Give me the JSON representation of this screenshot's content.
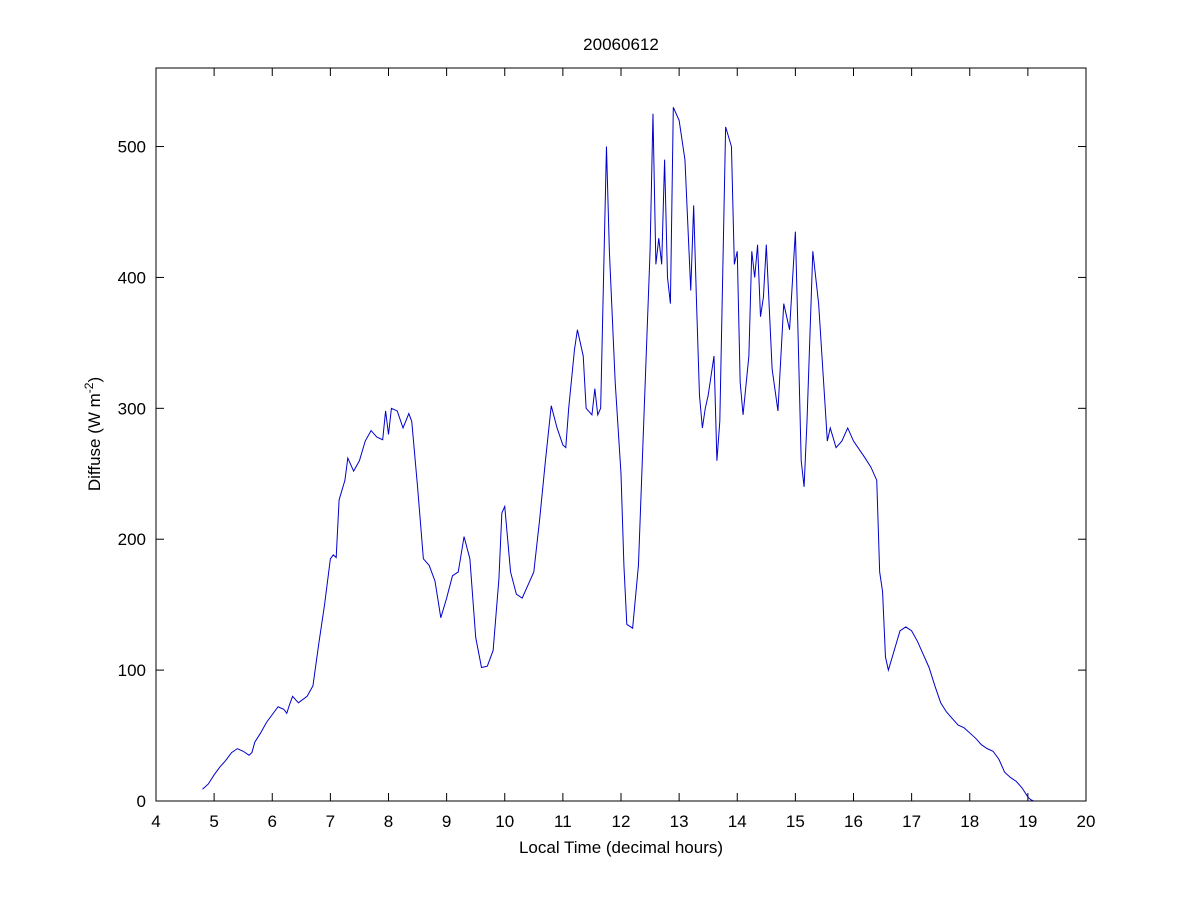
{
  "chart_data": {
    "type": "line",
    "title": "20060612",
    "xlabel": "Local Time (decimal hours)",
    "ylabel": [
      "Diffuse (W m",
      "-2",
      ")"
    ],
    "xlim": [
      4,
      20
    ],
    "ylim": [
      0,
      560
    ],
    "xticks": [
      4,
      5,
      6,
      7,
      8,
      9,
      10,
      11,
      12,
      13,
      14,
      15,
      16,
      17,
      18,
      19,
      20
    ],
    "yticks": [
      0,
      100,
      200,
      300,
      400,
      500
    ],
    "grid": false,
    "series": [
      {
        "color": "#0000cc",
        "x": [
          4.8,
          4.9,
          5.0,
          5.1,
          5.2,
          5.3,
          5.4,
          5.5,
          5.6,
          5.65,
          5.7,
          5.8,
          5.9,
          6.0,
          6.1,
          6.2,
          6.25,
          6.3,
          6.35,
          6.45,
          6.6,
          6.7,
          6.8,
          6.9,
          7.0,
          7.05,
          7.1,
          7.15,
          7.25,
          7.3,
          7.4,
          7.5,
          7.6,
          7.7,
          7.8,
          7.9,
          7.95,
          8.0,
          8.05,
          8.15,
          8.25,
          8.35,
          8.4,
          8.5,
          8.6,
          8.7,
          8.8,
          8.9,
          9.0,
          9.1,
          9.2,
          9.3,
          9.4,
          9.5,
          9.6,
          9.7,
          9.8,
          9.9,
          9.95,
          10.0,
          10.1,
          10.2,
          10.3,
          10.4,
          10.5,
          10.6,
          10.7,
          10.8,
          10.9,
          11.0,
          11.05,
          11.1,
          11.2,
          11.25,
          11.3,
          11.35,
          11.4,
          11.5,
          11.55,
          11.6,
          11.65,
          11.7,
          11.75,
          11.8,
          11.9,
          12.0,
          12.05,
          12.1,
          12.2,
          12.3,
          12.4,
          12.5,
          12.55,
          12.6,
          12.65,
          12.7,
          12.75,
          12.8,
          12.85,
          12.9,
          13.0,
          13.1,
          13.2,
          13.25,
          13.3,
          13.35,
          13.4,
          13.45,
          13.5,
          13.6,
          13.65,
          13.7,
          13.8,
          13.9,
          13.95,
          14.0,
          14.05,
          14.1,
          14.2,
          14.25,
          14.3,
          14.35,
          14.4,
          14.45,
          14.5,
          14.6,
          14.7,
          14.8,
          14.9,
          15.0,
          15.05,
          15.1,
          15.15,
          15.2,
          15.3,
          15.4,
          15.5,
          15.55,
          15.6,
          15.7,
          15.8,
          15.9,
          16.0,
          16.2,
          16.3,
          16.4,
          16.45,
          16.5,
          16.55,
          16.6,
          16.7,
          16.8,
          16.9,
          17.0,
          17.1,
          17.2,
          17.3,
          17.4,
          17.5,
          17.6,
          17.7,
          17.8,
          17.9,
          18.0,
          18.1,
          18.2,
          18.3,
          18.4,
          18.5,
          18.6,
          18.7,
          18.8,
          18.9,
          19.0,
          19.05,
          19.1
        ],
        "values": [
          9,
          13,
          20,
          26,
          31,
          37,
          40,
          38,
          35,
          37,
          45,
          52,
          60,
          66,
          72,
          70,
          67,
          74,
          80,
          75,
          80,
          88,
          120,
          150,
          185,
          188,
          186,
          230,
          245,
          262,
          252,
          260,
          275,
          283,
          278,
          276,
          298,
          280,
          300,
          298,
          285,
          296,
          290,
          240,
          185,
          180,
          168,
          140,
          155,
          172,
          175,
          202,
          185,
          125,
          102,
          103,
          115,
          170,
          220,
          225,
          175,
          158,
          155,
          165,
          175,
          215,
          260,
          302,
          285,
          272,
          270,
          300,
          345,
          360,
          350,
          340,
          300,
          295,
          315,
          295,
          300,
          400,
          500,
          420,
          320,
          250,
          180,
          135,
          132,
          180,
          300,
          420,
          525,
          410,
          430,
          410,
          490,
          400,
          380,
          530,
          520,
          490,
          390,
          455,
          380,
          310,
          285,
          300,
          310,
          340,
          260,
          290,
          515,
          500,
          410,
          420,
          320,
          295,
          340,
          420,
          400,
          425,
          370,
          385,
          425,
          330,
          298,
          380,
          360,
          435,
          350,
          260,
          240,
          290,
          420,
          380,
          310,
          275,
          285,
          270,
          275,
          285,
          275,
          262,
          255,
          245,
          175,
          160,
          110,
          100,
          115,
          130,
          133,
          130,
          122,
          112,
          102,
          88,
          75,
          68,
          63,
          58,
          56,
          52,
          48,
          43,
          40,
          38,
          32,
          22,
          18,
          15,
          10,
          3,
          1,
          0
        ]
      }
    ]
  }
}
